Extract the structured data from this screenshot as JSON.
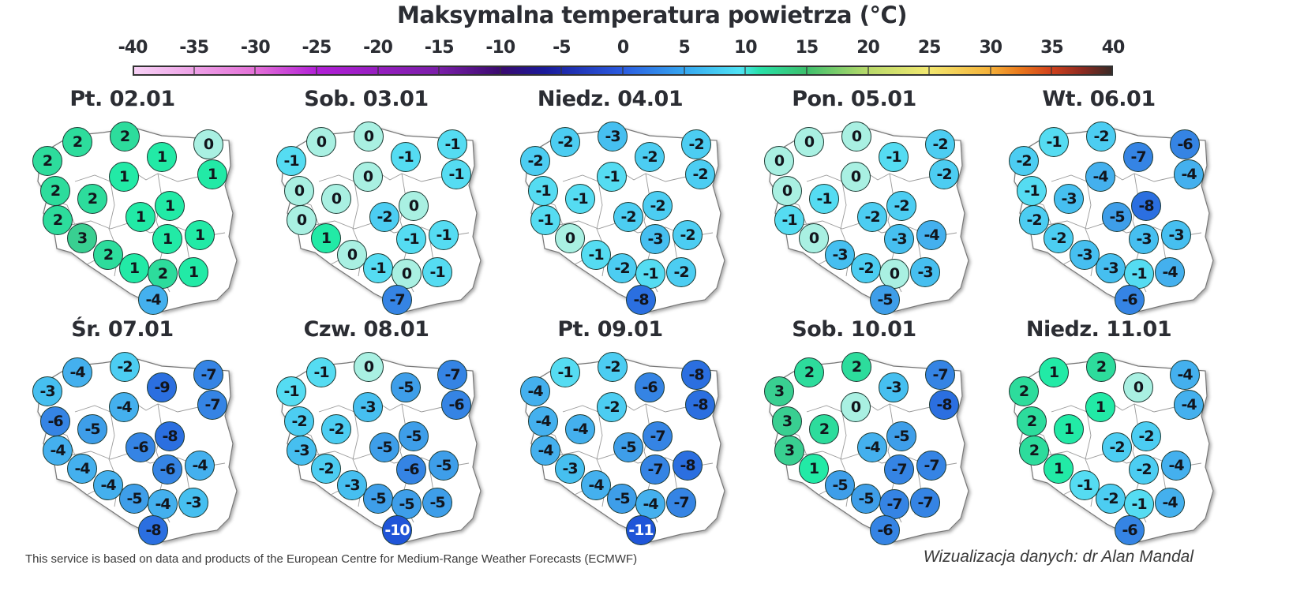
{
  "title": "Maksymalna temperatura powietrza (°C)",
  "colorbar": {
    "ticks": [
      "-40",
      "-35",
      "-30",
      "-25",
      "-20",
      "-15",
      "-10",
      "-5",
      "0",
      "5",
      "10",
      "15",
      "20",
      "25",
      "30",
      "35",
      "40"
    ],
    "range": [
      -40,
      40
    ]
  },
  "footer": {
    "source": "This service is based on data and products of the European Centre for Medium-Range Weather Forecasts (ECMWF)",
    "credit": "Wizualizacja danych: dr Alan Mandal"
  },
  "chart_data": {
    "type": "heatmap",
    "title": "Maksymalna temperatura powietrza (°C)",
    "subtype": "small-multiple choropleth station maps of Poland",
    "legend": {
      "ticks": [
        -40,
        -35,
        -30,
        -25,
        -20,
        -15,
        -10,
        -5,
        0,
        5,
        10,
        15,
        20,
        25,
        30,
        35,
        40
      ],
      "position": "top"
    },
    "station_order": [
      "NW-coast-west",
      "NW-coast",
      "N-coast",
      "N-east-of-Gdansk",
      "NE-corner",
      "NE",
      "Center-north",
      "W1",
      "W-inner",
      "Center-east",
      "W2",
      "Center",
      "SE-center",
      "E",
      "SW1",
      "SW2",
      "S1",
      "S2",
      "SE",
      "Tatra"
    ],
    "panels": [
      {
        "label": "Pt. 02.01",
        "values": [
          2,
          2,
          2,
          1,
          0,
          1,
          1,
          2,
          2,
          1,
          2,
          1,
          1,
          1,
          3,
          2,
          1,
          2,
          1,
          -4
        ]
      },
      {
        "label": "Sob. 03.01",
        "values": [
          -1,
          0,
          0,
          -1,
          -1,
          -1,
          0,
          0,
          0,
          0,
          0,
          -2,
          -1,
          -1,
          1,
          0,
          -1,
          0,
          -1,
          -7
        ]
      },
      {
        "label": "Niedz. 04.01",
        "values": [
          -2,
          -2,
          -3,
          -2,
          -2,
          -2,
          -1,
          -1,
          -1,
          -2,
          -1,
          -2,
          -3,
          -2,
          0,
          -1,
          -2,
          -1,
          -2,
          -8
        ]
      },
      {
        "label": "Pon. 05.01",
        "values": [
          0,
          0,
          0,
          -1,
          -2,
          -2,
          0,
          0,
          -1,
          -2,
          -1,
          -2,
          -3,
          -4,
          0,
          -3,
          -2,
          0,
          -3,
          -5
        ]
      },
      {
        "label": "Wt. 06.01",
        "values": [
          -2,
          -1,
          -2,
          -7,
          -6,
          -4,
          -4,
          -1,
          -3,
          -8,
          -2,
          -5,
          -3,
          -3,
          -2,
          -3,
          -3,
          -1,
          -4,
          -6
        ]
      },
      {
        "label": "Śr. 07.01",
        "values": [
          -3,
          -4,
          -2,
          -9,
          -7,
          -7,
          -4,
          -6,
          -5,
          -8,
          -4,
          -6,
          -6,
          -4,
          -4,
          -4,
          -5,
          -4,
          -3,
          -8
        ]
      },
      {
        "label": "Czw. 08.01",
        "values": [
          -1,
          -1,
          0,
          -5,
          -7,
          -6,
          -3,
          -2,
          -2,
          -5,
          -3,
          -5,
          -6,
          -5,
          -2,
          -3,
          -5,
          -5,
          -5,
          -10
        ]
      },
      {
        "label": "Pt. 09.01",
        "values": [
          -4,
          -1,
          -2,
          -6,
          -8,
          -8,
          -2,
          -4,
          -4,
          -7,
          -4,
          -5,
          -7,
          -8,
          -3,
          -4,
          -5,
          -4,
          -7,
          -11
        ]
      },
      {
        "label": "Sob. 10.01",
        "values": [
          3,
          2,
          2,
          -3,
          -7,
          -8,
          0,
          3,
          2,
          -5,
          3,
          -4,
          -7,
          -7,
          1,
          -5,
          -5,
          -7,
          -7,
          -6
        ]
      },
      {
        "label": "Niedz. 11.01",
        "values": [
          2,
          1,
          2,
          0,
          -4,
          -4,
          1,
          2,
          1,
          -2,
          2,
          -2,
          -2,
          -4,
          1,
          -1,
          -2,
          -1,
          -4,
          -6
        ]
      }
    ]
  }
}
